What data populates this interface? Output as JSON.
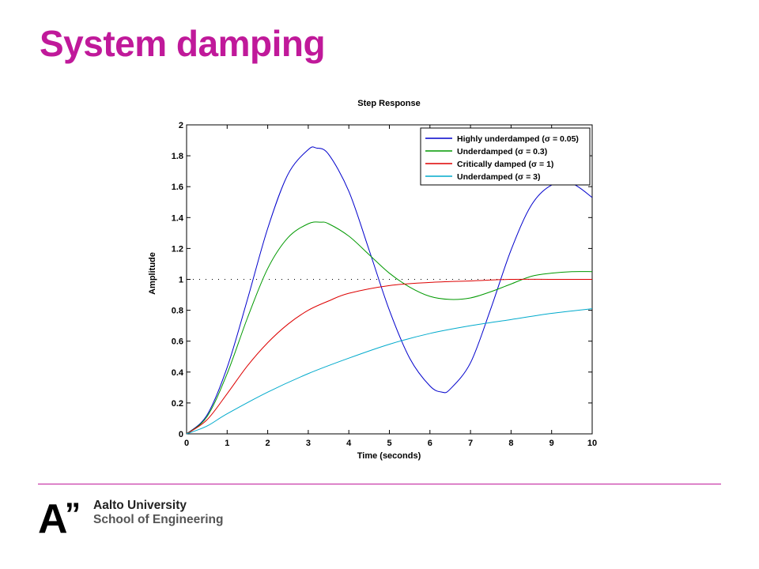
{
  "slide": {
    "title": "System damping",
    "accent_color": "#c0199a"
  },
  "footer": {
    "logo_glyph": "A",
    "logo_quotes": "”",
    "institution_line1": "Aalto University",
    "institution_line2": "School of Engineering"
  },
  "chart_data": {
    "type": "line",
    "title": "Step Response",
    "xlabel": "Time (seconds)",
    "ylabel": "Amplitude",
    "xlim": [
      0,
      10
    ],
    "ylim": [
      0,
      2
    ],
    "xticks": [
      "0",
      "1",
      "2",
      "3",
      "4",
      "5",
      "6",
      "7",
      "8",
      "9",
      "10"
    ],
    "yticks": [
      "0",
      "0.2",
      "0.4",
      "0.6",
      "0.8",
      "1",
      "1.2",
      "1.4",
      "1.6",
      "1.8",
      "2"
    ],
    "reference_line": {
      "y": 1,
      "style": "dotted"
    },
    "legend_position": "top-right",
    "grid": false,
    "series": [
      {
        "name": "Highly underdamped (σ = 0.05)",
        "color": "#0000cc",
        "x": [
          0,
          0.5,
          1,
          1.5,
          2,
          2.5,
          3,
          3.2,
          3.5,
          4,
          4.5,
          5,
          5.5,
          6,
          6.3,
          6.5,
          7,
          7.5,
          8,
          8.5,
          9,
          9.5,
          10
        ],
        "y": [
          0,
          0.12,
          0.43,
          0.87,
          1.33,
          1.68,
          1.84,
          1.85,
          1.81,
          1.57,
          1.19,
          0.8,
          0.49,
          0.31,
          0.27,
          0.29,
          0.46,
          0.81,
          1.19,
          1.48,
          1.61,
          1.62,
          1.53
        ]
      },
      {
        "name": "Underdamped (σ = 0.3)",
        "color": "#009900",
        "x": [
          0,
          0.5,
          1,
          1.5,
          2,
          2.5,
          3,
          3.3,
          3.5,
          4,
          4.5,
          5,
          5.5,
          6,
          6.5,
          7,
          7.5,
          8,
          8.5,
          9,
          9.5,
          10
        ],
        "y": [
          0,
          0.11,
          0.39,
          0.75,
          1.07,
          1.27,
          1.36,
          1.37,
          1.36,
          1.28,
          1.16,
          1.04,
          0.95,
          0.89,
          0.87,
          0.88,
          0.92,
          0.97,
          1.02,
          1.04,
          1.05,
          1.05
        ]
      },
      {
        "name": "Critically damped (σ = 1)",
        "color": "#dd0000",
        "x": [
          0,
          0.5,
          1,
          1.5,
          2,
          2.5,
          3,
          3.5,
          4,
          5,
          6,
          7,
          8,
          9,
          10
        ],
        "y": [
          0,
          0.09,
          0.26,
          0.44,
          0.59,
          0.71,
          0.8,
          0.86,
          0.91,
          0.96,
          0.98,
          0.99,
          1.0,
          1.0,
          1.0
        ]
      },
      {
        "name": "Underdamped (σ = 3)",
        "color": "#00aacc",
        "x": [
          0,
          0.5,
          1,
          2,
          3,
          4,
          5,
          6,
          7,
          8,
          9,
          10
        ],
        "y": [
          0,
          0.05,
          0.13,
          0.27,
          0.39,
          0.49,
          0.58,
          0.65,
          0.7,
          0.74,
          0.78,
          0.81
        ]
      }
    ]
  }
}
